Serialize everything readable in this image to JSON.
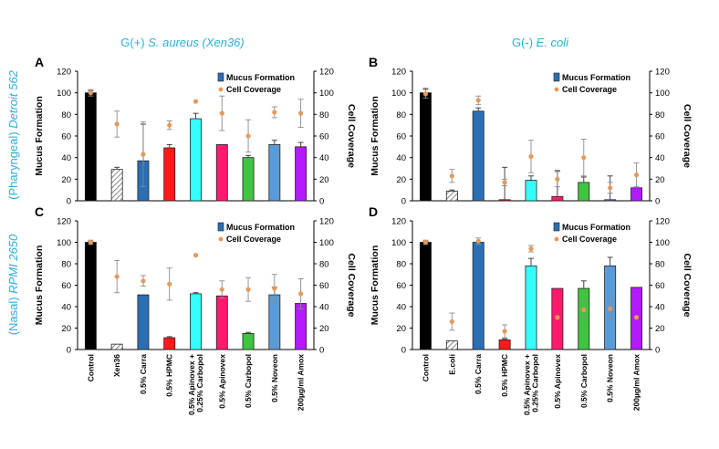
{
  "titles": {
    "col_left_prefix": "G(+) ",
    "col_left_italic": "S. aureus (Xen36)",
    "col_right_prefix": "G(-) ",
    "col_right_italic": "E. coli",
    "row_top_prefix": "(Pharyngeal) ",
    "row_top_italic": "Detroit 562",
    "row_bottom_prefix": "(Nasal) ",
    "row_bottom_italic": "RPMI 2650"
  },
  "axes": {
    "left_label": "Mucus Formation",
    "right_label": "Cell Coverage",
    "ylim": [
      0,
      120
    ],
    "ticks": [
      0,
      20,
      40,
      60,
      80,
      100,
      120
    ]
  },
  "legend": {
    "bar_label": "Mucus Formation",
    "dot_label": "Cell Coverage"
  },
  "colors": {
    "title": "#2eaed6",
    "dot": "#e49a5c",
    "bar_colors": [
      "#000000",
      "#ffffff",
      "#2a6fb5",
      "#ff1a1a",
      "#33ffff",
      "#ff1a6e",
      "#3fc43f",
      "#5b9bd5",
      "#b31aff"
    ]
  },
  "chart_data": [
    {
      "panel": "A",
      "type": "bar",
      "categories": [
        "Control",
        "Xen36",
        "0.5% Carra",
        "0.5% HPMC",
        "0.5% Apinovex + 0.25% Carbopol",
        "0.5% Apinovex",
        "0.5% Carbopol",
        "0.5% Noveon",
        "200µg/ml Amox"
      ],
      "ylim": [
        0,
        120
      ],
      "series": [
        {
          "name": "Mucus Formation",
          "values": [
            100,
            29,
            37,
            49,
            76,
            52,
            40,
            52,
            50
          ],
          "errors": [
            2,
            2,
            34,
            3,
            5,
            0,
            2,
            4,
            4
          ]
        },
        {
          "name": "Cell Coverage",
          "values": [
            100,
            71,
            43,
            70,
            92,
            81,
            60,
            82,
            81
          ],
          "errors": [
            3,
            12,
            30,
            4,
            0,
            16,
            15,
            5,
            13
          ]
        }
      ]
    },
    {
      "panel": "B",
      "type": "bar",
      "categories": [
        "Control",
        "E.coli",
        "0.5% Carra",
        "0.5% HPMC",
        "0.5% Apinovex + 0.25% Carbopol",
        "0.5% Apinovex",
        "0.5% Carbopol",
        "0.5% Noveon",
        "200µg/ml Amox"
      ],
      "ylim": [
        0,
        120
      ],
      "series": [
        {
          "name": "Mucus Formation",
          "values": [
            100,
            9,
            83,
            1,
            19,
            4,
            17,
            1,
            12
          ],
          "errors": [
            4,
            1,
            3,
            30,
            4,
            24,
            5,
            22,
            0
          ]
        },
        {
          "name": "Cell Coverage",
          "values": [
            99,
            23,
            93,
            17,
            41,
            20,
            40,
            12,
            24
          ],
          "errors": [
            4,
            6,
            4,
            3,
            15,
            7,
            17,
            5,
            11
          ]
        }
      ]
    },
    {
      "panel": "C",
      "type": "bar",
      "categories": [
        "Control",
        "Xen36",
        "0.5% Carra",
        "0.5% HPMC",
        "0.5% Apinovex + 0.25% Carbopol",
        "0.5% Apinovex",
        "0.5% Carbopol",
        "0.5% Noveon",
        "200µg/ml Amox"
      ],
      "ylim": [
        0,
        120
      ],
      "series": [
        {
          "name": "Mucus Formation",
          "values": [
            100,
            5,
            51,
            11,
            52,
            50,
            15,
            51,
            43
          ],
          "errors": [
            1,
            0,
            0,
            1,
            1,
            0,
            1,
            7,
            0
          ]
        },
        {
          "name": "Cell Coverage",
          "values": [
            100,
            68,
            64,
            61,
            88,
            56,
            56,
            57,
            52
          ],
          "errors": [
            2,
            15,
            5,
            15,
            0,
            8,
            11,
            13,
            14
          ]
        }
      ]
    },
    {
      "panel": "D",
      "type": "bar",
      "categories": [
        "Control",
        "E.coli",
        "0.5% Carra",
        "0.5% HPMC",
        "0.5% Apinovex + 0.25% Carbopol",
        "0.5% Apinovex",
        "0.5% Carbopol",
        "0.5% Noveon",
        "200µg/ml Amox"
      ],
      "ylim": [
        0,
        120
      ],
      "series": [
        {
          "name": "Mucus Formation",
          "values": [
            100,
            8,
            100,
            9,
            78,
            57,
            57,
            78,
            58
          ],
          "errors": [
            1,
            0,
            0,
            1,
            7,
            0,
            7,
            8,
            0
          ]
        },
        {
          "name": "Cell Coverage",
          "values": [
            100,
            26,
            101,
            17,
            94,
            30,
            37,
            38,
            30
          ],
          "errors": [
            2,
            8,
            3,
            6,
            3,
            0,
            9,
            9,
            0
          ]
        }
      ]
    }
  ]
}
